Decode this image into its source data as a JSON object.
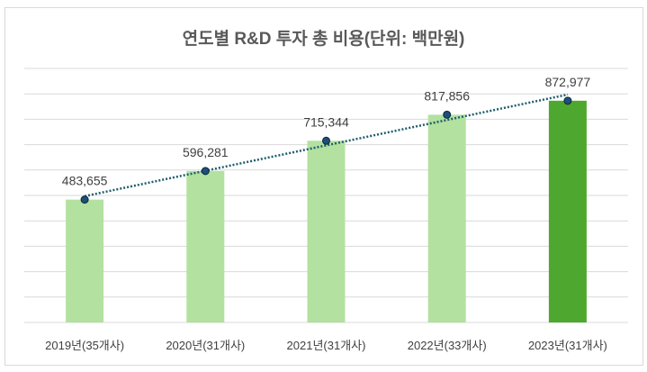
{
  "chart_data": {
    "type": "bar",
    "title": "연도별 R&D 투자 총 비용(단위: 백만원)",
    "categories": [
      "2019년(35개사)",
      "2020년(31개사)",
      "2021년(31개사)",
      "2022년(33개사)",
      "2023년(31개사)"
    ],
    "values": [
      483655,
      596281,
      715344,
      817856,
      872977
    ],
    "data_labels": [
      "483,655",
      "596,281",
      "715,344",
      "817,856",
      "872,977"
    ],
    "ylim": [
      0,
      1000000
    ],
    "grid": true,
    "trendline": "linear (dotted)",
    "colors": {
      "bar": "#b3e19f",
      "highlight_bar": "#4ea72e",
      "trendline": "#1f5d6e",
      "marker": "#1f4e79",
      "grid": "#d9d9d9"
    }
  }
}
